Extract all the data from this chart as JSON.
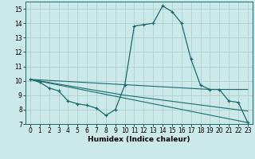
{
  "xlabel": "Humidex (Indice chaleur)",
  "background_color": "#cce9e9",
  "grid_color": "#aacccc",
  "line_color": "#1a6b6b",
  "xlim": [
    -0.5,
    23.5
  ],
  "ylim": [
    7,
    15.5
  ],
  "xticks": [
    0,
    1,
    2,
    3,
    4,
    5,
    6,
    7,
    8,
    9,
    10,
    11,
    12,
    13,
    14,
    15,
    16,
    17,
    18,
    19,
    20,
    21,
    22,
    23
  ],
  "yticks": [
    7,
    8,
    9,
    10,
    11,
    12,
    13,
    14,
    15
  ],
  "line1_x": [
    0,
    1,
    2,
    3,
    4,
    5,
    6,
    7,
    8,
    9,
    10,
    11,
    12,
    13,
    14,
    15,
    16,
    17,
    18,
    19,
    20,
    21,
    22,
    23
  ],
  "line1_y": [
    10.1,
    9.9,
    9.5,
    9.3,
    8.6,
    8.4,
    8.3,
    8.1,
    7.6,
    8.0,
    9.7,
    13.8,
    13.9,
    14.0,
    15.2,
    14.8,
    14.0,
    11.5,
    9.7,
    9.4,
    9.4,
    8.6,
    8.5,
    7.1
  ],
  "line2_x": [
    0,
    23
  ],
  "line2_y": [
    10.1,
    7.1
  ],
  "line3_x": [
    0,
    19,
    23
  ],
  "line3_y": [
    10.1,
    9.4,
    9.4
  ],
  "line4_x": [
    0,
    10,
    23
  ],
  "line4_y": [
    10.1,
    9.0,
    7.9
  ],
  "tick_fontsize": 5.5,
  "xlabel_fontsize": 6.5
}
